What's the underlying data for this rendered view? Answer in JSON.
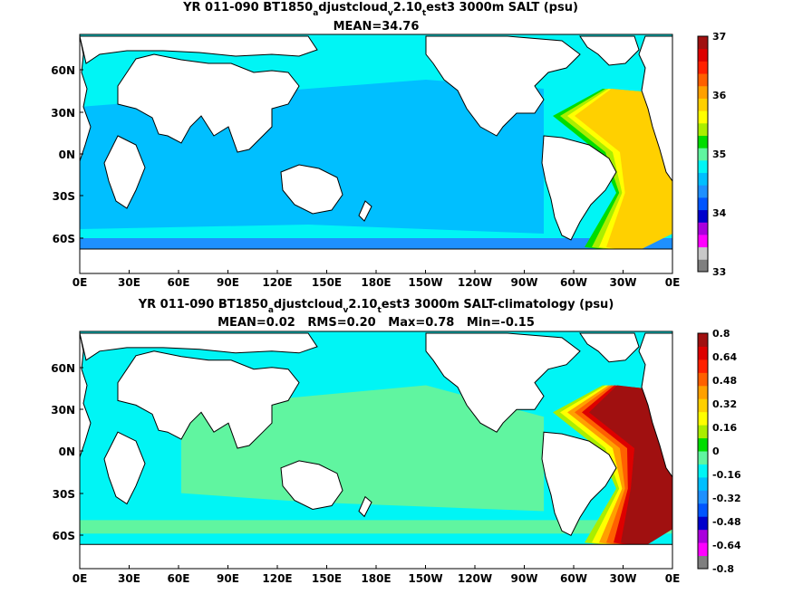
{
  "panels": [
    {
      "title": {
        "main": "YR 011-090 BT1850",
        "s1": "a",
        "m1": "djustcloud",
        "s2": "v",
        "m2": "2.10",
        "s3": "t",
        "m3": "est3 3000m SALT (psu)"
      },
      "stats": "MEAN=34.76",
      "lat_ticks": [
        "60N",
        "30N",
        "0N",
        "30S",
        "60S"
      ],
      "lon_ticks": [
        "0E",
        "30E",
        "60E",
        "90E",
        "120E",
        "150E",
        "180E",
        "150W",
        "120W",
        "90W",
        "60W",
        "30W",
        "0E"
      ],
      "colorbar": {
        "tick_labels": [
          "37",
          "36",
          "35",
          "34",
          "33"
        ],
        "colors": [
          "#7f7f7f",
          "#c8c8c8",
          "#ff00ff",
          "#aa00dd",
          "#0000cc",
          "#0055ff",
          "#1e90ff",
          "#00bfff",
          "#00f5f5",
          "#60f5a0",
          "#00dd00",
          "#aaee00",
          "#ffff00",
          "#ffd000",
          "#ffa000",
          "#ff6000",
          "#ff2000",
          "#dd0000",
          "#a01010"
        ]
      }
    },
    {
      "title": {
        "main": "YR 011-090 BT1850",
        "s1": "a",
        "m1": "djustcloud",
        "s2": "v",
        "m2": "2.10",
        "s3": "t",
        "m3": "est3 3000m SALT-climatology (psu)"
      },
      "stats": "MEAN=0.02   RMS=0.20   Max=0.78   Min=-0.15",
      "lat_ticks": [
        "60N",
        "30N",
        "0N",
        "30S",
        "60S"
      ],
      "lon_ticks": [
        "0E",
        "30E",
        "60E",
        "90E",
        "120E",
        "150E",
        "180E",
        "150W",
        "120W",
        "90W",
        "60W",
        "30W",
        "0E"
      ],
      "colorbar": {
        "tick_labels": [
          "0.8",
          "0.64",
          "0.48",
          "0.32",
          "0.16",
          "0",
          "-0.16",
          "-0.32",
          "-0.48",
          "-0.64",
          "-0.8"
        ],
        "colors": [
          "#7f7f7f",
          "#ff00ff",
          "#aa00dd",
          "#0000cc",
          "#0055ff",
          "#1e90ff",
          "#00bfff",
          "#00f5f5",
          "#60f5a0",
          "#00dd00",
          "#aaee00",
          "#ffff00",
          "#ffd000",
          "#ffa000",
          "#ff6000",
          "#ff2000",
          "#dd0000",
          "#a01010"
        ]
      }
    }
  ],
  "colors": {
    "ocean_top": "#00bfff",
    "ocean_bottom": "#00f5f5",
    "deep_green": "#60f5a0",
    "atlantic_warm": [
      "#00dd00",
      "#aaee00",
      "#ffff00",
      "#ffd000"
    ],
    "anomaly_warm": [
      "#aaee00",
      "#ffff00",
      "#ffa000",
      "#ff6000",
      "#dd0000",
      "#a01010"
    ],
    "land": "#ffffff",
    "coast": "#000000"
  }
}
